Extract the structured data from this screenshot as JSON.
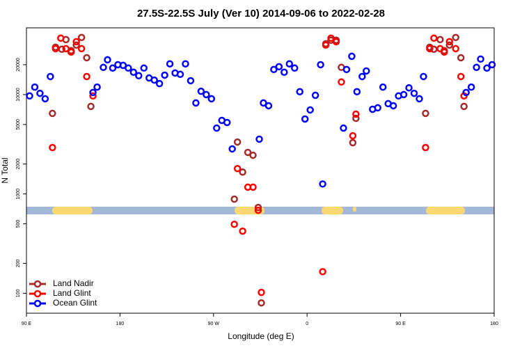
{
  "chart_data": {
    "type": "scatter",
    "title": "27.5S-22.5S July (Ver 10)   2014-09-06 to 2022-02-28",
    "x_label": "Longitude (deg E)",
    "y_label": "N Total",
    "log_y": true,
    "legend": "bottom-left",
    "xlim": [
      90,
      540
    ],
    "xticks": [
      {
        "value": 90,
        "label": "90 E"
      },
      180,
      {
        "value": 270,
        "label": "90 W"
      },
      {
        "value": 360,
        "label": "0"
      },
      {
        "value": 450,
        "label": "90 E"
      },
      {
        "value": 540,
        "label": "180"
      }
    ],
    "ylim": [
      63,
      47000
    ],
    "yticks": [
      100,
      200,
      500,
      1000,
      2000,
      5000,
      10000,
      20000
    ],
    "series": [
      {
        "name": "Land Nadir",
        "color": "#a52a2a",
        "x": [
          115,
          118,
          124,
          128,
          133,
          138,
          143,
          148,
          152,
          290,
          293,
          298,
          303,
          308,
          313,
          316,
          378,
          383,
          388,
          393,
          404,
          407,
          474,
          478,
          482,
          488,
          492,
          497,
          503,
          508,
          511
        ],
        "values": [
          6470,
          30000,
          28600,
          35800,
          27700,
          31500,
          37600,
          23500,
          7600,
          886,
          3330,
          1660,
          2620,
          2450,
          730,
          80,
          32500,
          35300,
          35300,
          18800,
          3280,
          5770,
          6470,
          30000,
          28600,
          35800,
          27700,
          31500,
          37600,
          23500,
          7600
        ]
      },
      {
        "name": "Land Glint",
        "color": "#ff0000",
        "x": [
          115,
          118,
          123,
          128,
          133,
          138,
          143,
          148,
          154,
          290,
          293,
          298,
          303,
          308,
          313,
          316,
          375,
          378,
          383,
          388,
          393,
          404,
          407,
          474,
          478,
          482,
          488,
          492,
          497,
          503,
          508,
          511
        ],
        "values": [
          2930,
          29000,
          37000,
          29000,
          26800,
          34100,
          29000,
          15200,
          9700,
          495,
          1800,
          422,
          1170,
          1170,
          684,
          102,
          165,
          31500,
          37000,
          34100,
          13400,
          3850,
          6360,
          2930,
          29000,
          37000,
          29000,
          26800,
          34100,
          29000,
          15200,
          9700
        ]
      },
      {
        "name": "Ocean Glint",
        "color": "#0000ff",
        "x": [
          93,
          98,
          103,
          108,
          113,
          154,
          158,
          164,
          168,
          173,
          178,
          183,
          188,
          193,
          198,
          203,
          208,
          213,
          218,
          223,
          228,
          233,
          238,
          243,
          248,
          253,
          258,
          263,
          268,
          273,
          278,
          283,
          288,
          314,
          318,
          323,
          328,
          333,
          338,
          343,
          348,
          353,
          358,
          363,
          368,
          373,
          375,
          395,
          398,
          403,
          408,
          413,
          417,
          423,
          428,
          433,
          438,
          443,
          448,
          453,
          458,
          463,
          468,
          472,
          513,
          518,
          523,
          527,
          533,
          538
        ],
        "values": [
          9700,
          11900,
          10300,
          9080,
          15200,
          10500,
          11900,
          18800,
          22400,
          18500,
          20000,
          19700,
          18500,
          16800,
          15500,
          18500,
          14700,
          14000,
          12900,
          15700,
          20400,
          16500,
          16000,
          20400,
          13800,
          8240,
          10800,
          10000,
          9080,
          4600,
          5500,
          5240,
          2840,
          3560,
          8240,
          7720,
          17900,
          19100,
          16800,
          20400,
          18500,
          10700,
          5680,
          7010,
          9840,
          20000,
          1260,
          4600,
          17900,
          24300,
          10700,
          15200,
          17300,
          7120,
          7360,
          11900,
          8110,
          7720,
          9700,
          10000,
          11700,
          10300,
          9080,
          15200,
          10500,
          11900,
          18800,
          22800,
          18500,
          20000
        ]
      }
    ]
  }
}
